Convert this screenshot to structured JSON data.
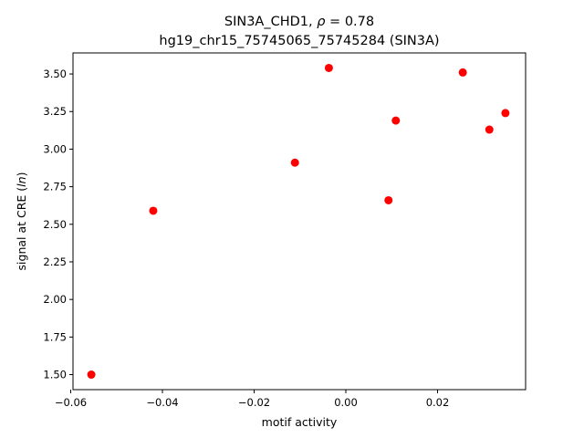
{
  "chart_data": {
    "type": "scatter",
    "title": "SIN3A_CHD1, ρ = 0.78",
    "subtitle": "hg19_chr15_75745065_75745284 (SIN3A)",
    "xlabel": "motif activity",
    "ylabel": "signal at CRE (ln)",
    "xlim": [
      -0.0595,
      0.0392
    ],
    "ylim": [
      1.4,
      3.64
    ],
    "xticks": [
      -0.06,
      -0.04,
      -0.02,
      0.0,
      0.02
    ],
    "xtick_labels": [
      "−0.06",
      "−0.04",
      "−0.02",
      "0.00",
      "0.02"
    ],
    "yticks": [
      1.5,
      1.75,
      2.0,
      2.25,
      2.5,
      2.75,
      3.0,
      3.25,
      3.5
    ],
    "ytick_labels": [
      "1.50",
      "1.75",
      "2.00",
      "2.25",
      "2.50",
      "2.75",
      "3.00",
      "3.25",
      "3.50"
    ],
    "grid": false,
    "marker_color": "#ff0000",
    "points": [
      {
        "x": -0.0555,
        "y": 1.5
      },
      {
        "x": -0.042,
        "y": 2.59
      },
      {
        "x": -0.0111,
        "y": 2.91
      },
      {
        "x": -0.0037,
        "y": 3.54
      },
      {
        "x": 0.0093,
        "y": 2.66
      },
      {
        "x": 0.0109,
        "y": 3.19
      },
      {
        "x": 0.0255,
        "y": 3.51
      },
      {
        "x": 0.0313,
        "y": 3.13
      },
      {
        "x": 0.0348,
        "y": 3.24
      }
    ]
  }
}
